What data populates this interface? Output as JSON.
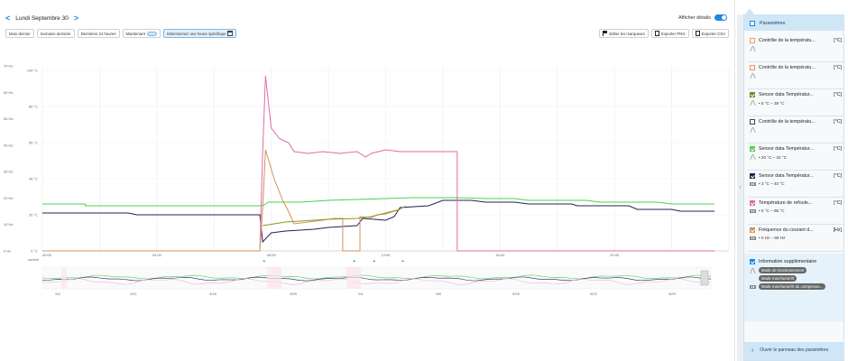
{
  "header": {
    "prev_icon": "chevron-left-icon",
    "next_icon": "chevron-right-icon",
    "date": "Lundi Septembre 30",
    "details_label": "Afficher détails"
  },
  "toolbar": {
    "last_month": "Mois dernier",
    "last_week": "Semaine dernière",
    "last_24h": "Dernières 24 heures",
    "now": "Maintenant",
    "specific_time": "Sélectionnez une heure spécifique"
  },
  "actions": {
    "edit_markers": "Editer les marqueurs",
    "export_png": "Exporter PNG",
    "export_csv": "Exporter CSV"
  },
  "chart_data": {
    "type": "line",
    "x_ticks": [
      "00:00",
      "04:00",
      "08:00",
      "12:00",
      "16:00",
      "20:00"
    ],
    "x_range_hours": [
      0,
      24
    ],
    "y_left_ticks": [
      "0 Hz",
      "10 Hz",
      "20 Hz",
      "30 Hz",
      "40 Hz",
      "50 Hz",
      "60 Hz",
      "70 Hz"
    ],
    "y_right_ticks": [
      "0 °C",
      "20 °C",
      "40 °C",
      "60 °C",
      "80 °C",
      "100 °C"
    ],
    "y_range_celsius": [
      0,
      100
    ],
    "bottom_label": "control",
    "overview_ticks": [
      "9/4",
      "9/11",
      "9/18",
      "9/25",
      "9/1",
      "9/8",
      "9/15",
      "9/22",
      "9/29"
    ],
    "series": [
      {
        "name": "Sensor data Température",
        "color": "#4cd14c",
        "points": [
          [
            0,
            26
          ],
          [
            1.5,
            26
          ],
          [
            1.5,
            25
          ],
          [
            7.7,
            25
          ],
          [
            7.9,
            27
          ],
          [
            9,
            27
          ],
          [
            10,
            28
          ],
          [
            11,
            28.5
          ],
          [
            12,
            29
          ],
          [
            13,
            29.5
          ],
          [
            14.5,
            29.5
          ],
          [
            15.5,
            29
          ],
          [
            16.5,
            29
          ],
          [
            17,
            28
          ],
          [
            19,
            28
          ],
          [
            19.5,
            27
          ],
          [
            21.5,
            27
          ],
          [
            22,
            26
          ],
          [
            23.5,
            26
          ]
        ]
      },
      {
        "name": "Sensor data Température",
        "color": "#24205a",
        "points": [
          [
            0,
            21
          ],
          [
            3,
            21
          ],
          [
            3.3,
            20
          ],
          [
            7.6,
            20
          ],
          [
            7.7,
            5
          ],
          [
            8,
            10
          ],
          [
            8.5,
            11
          ],
          [
            9.5,
            12
          ],
          [
            10,
            13
          ],
          [
            11,
            14
          ],
          [
            11.2,
            18
          ],
          [
            12,
            17
          ],
          [
            12.3,
            19
          ],
          [
            12.5,
            24
          ],
          [
            13.5,
            25
          ],
          [
            14,
            28
          ],
          [
            15,
            28
          ],
          [
            15.5,
            27
          ],
          [
            16.5,
            27
          ],
          [
            17,
            26
          ],
          [
            18.5,
            26
          ],
          [
            18.7,
            25
          ],
          [
            20.5,
            25
          ],
          [
            20.8,
            23
          ],
          [
            22,
            23
          ],
          [
            22.3,
            22
          ],
          [
            23.5,
            22
          ]
        ]
      },
      {
        "name": "Température de refoulement",
        "color": "#e26aaa",
        "points": [
          [
            0,
            0
          ],
          [
            7.6,
            0
          ],
          [
            7.7,
            55
          ],
          [
            7.8,
            97
          ],
          [
            8,
            68
          ],
          [
            8.3,
            62
          ],
          [
            8.6,
            60
          ],
          [
            8.8,
            55
          ],
          [
            9.3,
            54
          ],
          [
            9.8,
            55
          ],
          [
            10.4,
            54
          ],
          [
            11,
            55
          ],
          [
            11.3,
            52
          ],
          [
            11.5,
            54
          ],
          [
            12,
            56
          ],
          [
            12.5,
            55
          ],
          [
            13,
            55
          ],
          [
            14.5,
            55
          ],
          [
            14.5,
            0
          ],
          [
            23.5,
            0
          ]
        ]
      },
      {
        "name": "Fréquence du courant d...",
        "color": "#d4915a",
        "points": [
          [
            0,
            0
          ],
          [
            7.6,
            0
          ],
          [
            7.7,
            24
          ],
          [
            7.8,
            56
          ],
          [
            8.1,
            40
          ],
          [
            8.4,
            28
          ],
          [
            8.6,
            22
          ],
          [
            8.8,
            15
          ],
          [
            9.3,
            16
          ],
          [
            9.8,
            17
          ],
          [
            10.2,
            18
          ],
          [
            10.5,
            18
          ],
          [
            10.5,
            0
          ],
          [
            11.1,
            0
          ],
          [
            11.1,
            19
          ],
          [
            11.5,
            18.5
          ],
          [
            11.7,
            20
          ],
          [
            12,
            20.5
          ],
          [
            12.3,
            22
          ],
          [
            12.5,
            23
          ],
          [
            12.7,
            25
          ]
        ]
      },
      {
        "name": "Sensor data Température",
        "color": "#8a9a1f",
        "points": [
          [
            7.7,
            14
          ],
          [
            8.5,
            16
          ],
          [
            9.5,
            17
          ],
          [
            10,
            17.5
          ],
          [
            11,
            18
          ],
          [
            11.5,
            19
          ],
          [
            12,
            21
          ],
          [
            12.5,
            23
          ]
        ]
      }
    ]
  },
  "sidebar": {
    "header": "Paramètres",
    "footer": "Ouvrir le panneau des paramètres",
    "collapse_icon": "chevron-right-icon",
    "items": [
      {
        "name": "Contrôle de la températu...",
        "unit": "[°C]",
        "color": "#e8a06e",
        "checked": false,
        "icon": "curve-icon",
        "range": ""
      },
      {
        "name": "Contrôle de la températu...",
        "unit": "[°C]",
        "color": "#e8906e",
        "checked": false,
        "icon": "curve-icon",
        "range": ""
      },
      {
        "name": "Sensor data Températur...",
        "unit": "[°C]",
        "color": "#7a8a1f",
        "checked": true,
        "icon": "curve-icon",
        "range": "• 5 °C – 39 °C"
      },
      {
        "name": "Contrôle de la températu...",
        "unit": "[°C]",
        "color": "#444444",
        "checked": false,
        "icon": "curve-icon",
        "range": ""
      },
      {
        "name": "Sensor data Températur...",
        "unit": "[°C]",
        "color": "#4cd14c",
        "checked": true,
        "icon": "curve-icon",
        "range": "• 20 °C – 32 °C"
      },
      {
        "name": "Sensor data Températur...",
        "unit": "[°C]",
        "color": "#24205a",
        "checked": true,
        "icon": "bars-icon",
        "range": "• 3 °C – 40 °C"
      },
      {
        "name": "Température de refoule...",
        "unit": "[°C]",
        "color": "#e26aaa",
        "checked": true,
        "icon": "bars-icon",
        "range": "• 0 °C – 95 °C"
      },
      {
        "name": "Fréquence du courant d...",
        "unit": "[Hz]",
        "color": "#d4915a",
        "checked": true,
        "icon": "bars-icon",
        "range": "• 0 Hz – 68 Hz"
      }
    ],
    "info": {
      "name": "Information supplémentaire",
      "tags": [
        "Mode de fonctionnement",
        "Mode marche/arrêt",
        "Mode marche/arrêt du compresso..."
      ]
    }
  }
}
